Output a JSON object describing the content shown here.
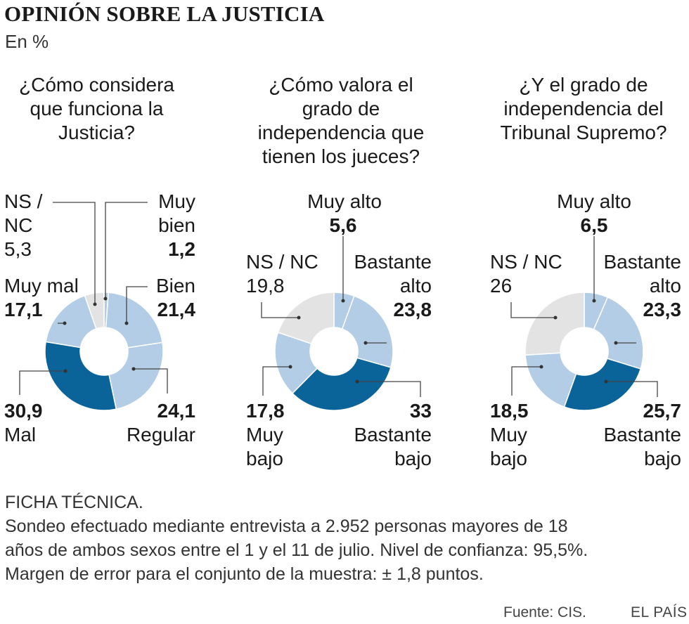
{
  "title": "OPINIÓN SOBRE LA JUSTICIA",
  "subtitle": "En %",
  "chart_data": [
    {
      "type": "pie",
      "variant": "donut",
      "title": "¿Cómo considera que funciona la Justicia?",
      "slices": [
        {
          "label": "Muy bien",
          "value": 1.2,
          "value_text": "1,2",
          "color": "#b2cde5"
        },
        {
          "label": "Bien",
          "value": 21.4,
          "value_text": "21,4",
          "color": "#b2cde5"
        },
        {
          "label": "Regular",
          "value": 24.1,
          "value_text": "24,1",
          "color": "#b2cde5"
        },
        {
          "label": "Mal",
          "value": 30.9,
          "value_text": "30,9",
          "color": "#0a6399"
        },
        {
          "label": "Muy mal",
          "value": 17.1,
          "value_text": "17,1",
          "color": "#b2cde5"
        },
        {
          "label": "NS / NC",
          "value": 5.3,
          "value_text": "5,3",
          "color": "#e3e3e3"
        }
      ]
    },
    {
      "type": "pie",
      "variant": "donut",
      "title": "¿Cómo valora el grado de independencia que tienen los jueces?",
      "slices": [
        {
          "label": "Muy alto",
          "value": 5.6,
          "value_text": "5,6",
          "color": "#b2cde5"
        },
        {
          "label": "Bastante alto",
          "value": 23.8,
          "value_text": "23,8",
          "color": "#b2cde5"
        },
        {
          "label": "Bastante bajo",
          "value": 33,
          "value_text": "33",
          "color": "#0a6399"
        },
        {
          "label": "Muy bajo",
          "value": 17.8,
          "value_text": "17,8",
          "color": "#b2cde5"
        },
        {
          "label": "NS / NC",
          "value": 19.8,
          "value_text": "19,8",
          "color": "#e3e3e3"
        }
      ]
    },
    {
      "type": "pie",
      "variant": "donut",
      "title": "¿Y el grado de independencia del Tribunal Supremo?",
      "slices": [
        {
          "label": "Muy alto",
          "value": 6.5,
          "value_text": "6,5",
          "color": "#b2cde5"
        },
        {
          "label": "Bastante alto",
          "value": 23.3,
          "value_text": "23,3",
          "color": "#b2cde5"
        },
        {
          "label": "Bastante bajo",
          "value": 25.7,
          "value_text": "25,7",
          "color": "#0a6399"
        },
        {
          "label": "Muy bajo",
          "value": 18.5,
          "value_text": "18,5",
          "color": "#b2cde5"
        },
        {
          "label": "NS / NC",
          "value": 26,
          "value_text": "26",
          "color": "#e3e3e3"
        }
      ]
    }
  ],
  "questions": [
    {
      "lines": [
        "¿Cómo considera",
        "que funciona la",
        "Justicia?"
      ]
    },
    {
      "lines": [
        "¿Cómo valora el",
        "grado de",
        "independencia que",
        "tienen los jueces?"
      ]
    },
    {
      "lines": [
        "¿Y el grado de",
        "independencia del",
        "Tribunal Supremo?"
      ]
    }
  ],
  "chart_labels": [
    {
      "muy_bien": [
        "Muy",
        "bien"
      ],
      "bien": "Bien",
      "regular": "Regular",
      "mal": "Mal",
      "muy_mal": "Muy mal",
      "nsnc": [
        "NS /",
        "NC"
      ]
    },
    {
      "muy_alto": "Muy alto",
      "bastante_alto": [
        "Bastante",
        "alto"
      ],
      "bastante_bajo": [
        "Bastante",
        "bajo"
      ],
      "muy_bajo": [
        "Muy",
        "bajo"
      ],
      "nsnc": "NS / NC"
    },
    {
      "muy_alto": "Muy alto",
      "bastante_alto": [
        "Bastante",
        "alto"
      ],
      "bastante_bajo": [
        "Bastante",
        "bajo"
      ],
      "muy_bajo": [
        "Muy",
        "bajo"
      ],
      "nsnc": "NS / NC"
    }
  ],
  "ficha": {
    "heading": "FICHA TÉCNICA.",
    "lines": [
      "Sondeo efectuado mediante entrevista a 2.952 personas mayores de 18",
      "años de ambos sexos  entre el 1 y el 11 de julio. Nivel de confianza: 95,5%.",
      "Margen de error para el conjunto de la muestra: ± 1,8 puntos."
    ]
  },
  "source": "Fuente: CIS.",
  "brand": "EL PAÍS"
}
